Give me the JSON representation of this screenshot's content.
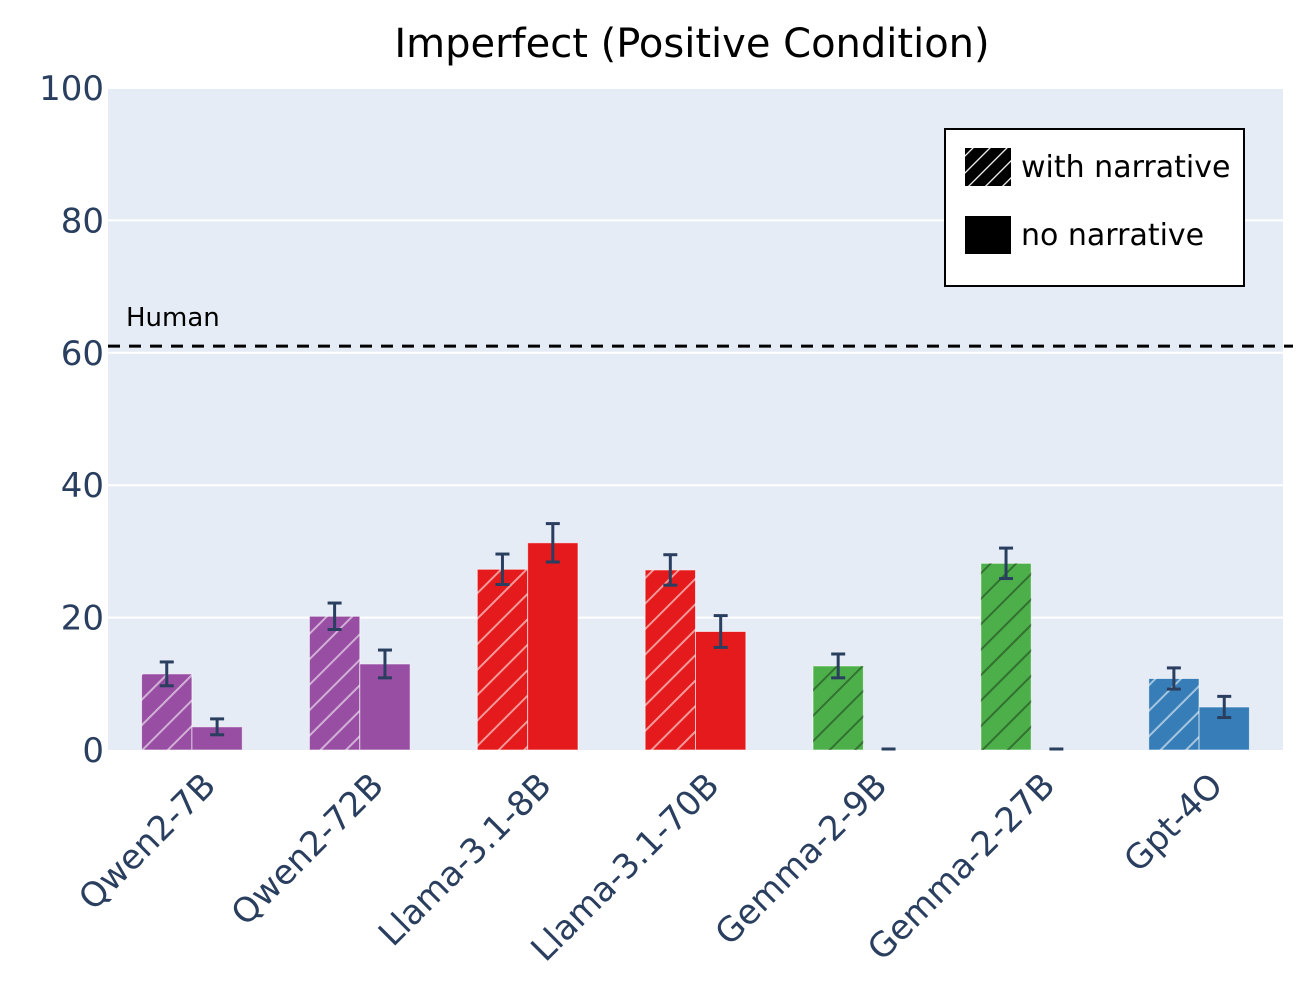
{
  "chart_data": {
    "type": "bar",
    "title": "Imperfect (Positive Condition)",
    "xlabel": "",
    "ylabel": "",
    "ylim": [
      0,
      100
    ],
    "yticks": [
      0,
      20,
      40,
      60,
      80,
      100
    ],
    "grid": true,
    "categories": [
      "Qwen2-7B",
      "Qwen2-72B",
      "Llama-3.1-8B",
      "Llama-3.1-70B",
      "Gemma-2-9B",
      "Gemma-2-27B",
      "Gpt-4O"
    ],
    "category_colors": [
      "#984ea3",
      "#984ea3",
      "#e41a1c",
      "#e41a1c",
      "#4daf4a",
      "#4daf4a",
      "#377eb8"
    ],
    "series": [
      {
        "name": "with narrative",
        "pattern": "hatched",
        "values": [
          11.5,
          20.2,
          27.3,
          27.2,
          12.7,
          28.2,
          10.8
        ],
        "error": [
          1.8,
          2.0,
          2.3,
          2.3,
          1.8,
          2.3,
          1.6
        ]
      },
      {
        "name": "no narrative",
        "pattern": "solid",
        "values": [
          3.5,
          13.0,
          31.3,
          17.9,
          0.0,
          0.0,
          6.5
        ],
        "error": [
          1.2,
          2.1,
          2.9,
          2.4,
          0,
          0,
          1.6
        ]
      }
    ],
    "reference_line": {
      "label": "Human",
      "value": 61,
      "style": "dashed",
      "color": "#000000"
    },
    "legend": {
      "position": "top-right",
      "entries": [
        "with narrative",
        "no narrative"
      ]
    },
    "colors": {
      "plot_bg": "#e5ecf6",
      "grid": "#ffffff",
      "tick_text": "#2a3f5f",
      "error_bar": "#2a3f5f"
    }
  }
}
